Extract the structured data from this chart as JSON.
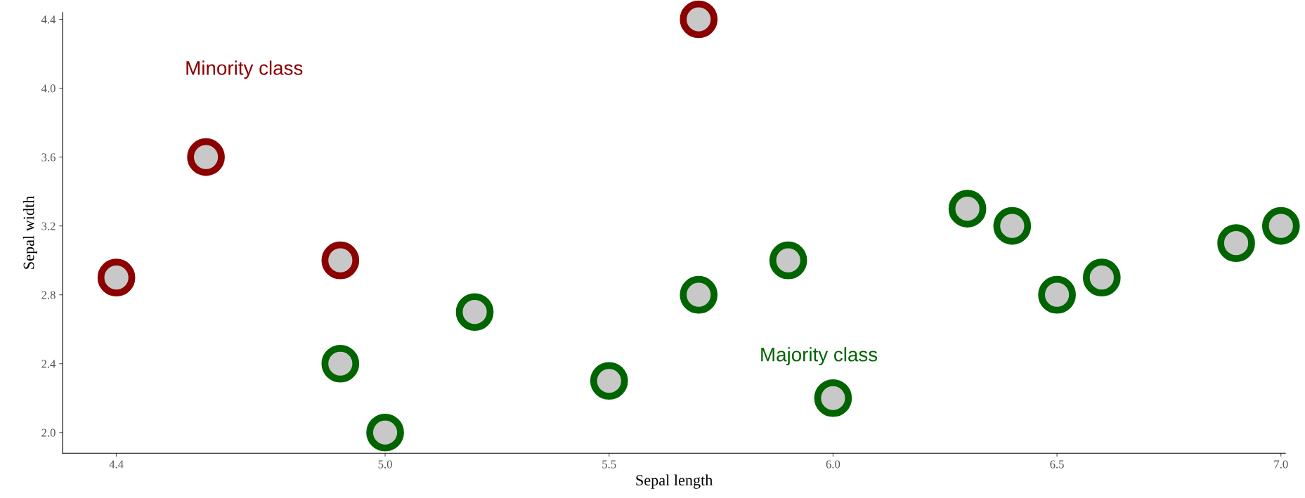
{
  "chart_data": {
    "type": "scatter",
    "xlabel": "Sepal length",
    "ylabel": "Sepal width",
    "xlim": [
      4.28,
      7.01
    ],
    "ylim": [
      1.88,
      4.44
    ],
    "xticks": [
      {
        "value": 4.4,
        "label": "4.4"
      },
      {
        "value": 5.0,
        "label": "5.0"
      },
      {
        "value": 5.5,
        "label": "5.5"
      },
      {
        "value": 6.0,
        "label": "6.0"
      },
      {
        "value": 6.5,
        "label": "6.5"
      },
      {
        "value": 7.0,
        "label": "7.0"
      }
    ],
    "yticks": [
      {
        "value": 2.0,
        "label": "2.0"
      },
      {
        "value": 2.4,
        "label": "2.4"
      },
      {
        "value": 2.8,
        "label": "2.8"
      },
      {
        "value": 3.2,
        "label": "3.2"
      },
      {
        "value": 3.6,
        "label": "3.6"
      },
      {
        "value": 4.0,
        "label": "4.0"
      },
      {
        "value": 4.4,
        "label": "4.4"
      }
    ],
    "grid": false,
    "legend": false,
    "marker": "circle",
    "series": [
      {
        "name": "Minority class",
        "color": "#8b0000",
        "x": [
          4.4,
          4.6,
          4.9,
          5.7
        ],
        "values": [
          2.9,
          3.6,
          3.0,
          4.4
        ]
      },
      {
        "name": "Majority class",
        "color": "#006400",
        "x": [
          4.9,
          5.0,
          5.2,
          5.5,
          5.7,
          5.9,
          6.0,
          6.3,
          6.4,
          6.5,
          6.6,
          6.9,
          7.0
        ],
        "values": [
          2.4,
          2.0,
          2.7,
          2.3,
          2.8,
          3.0,
          2.2,
          3.3,
          3.2,
          2.8,
          2.9,
          3.1,
          3.2
        ]
      }
    ]
  }
}
